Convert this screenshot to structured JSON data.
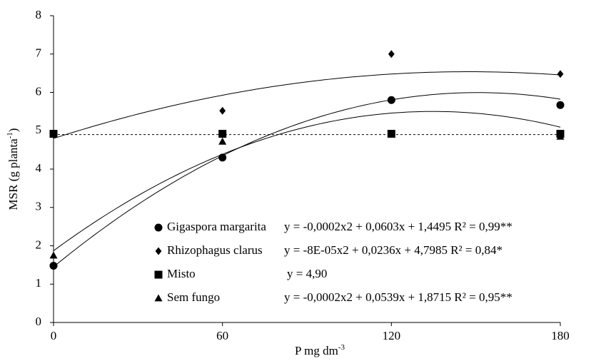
{
  "chart_data": {
    "type": "scatter",
    "x_label": {
      "text": "P mg dm",
      "sup": "-3"
    },
    "y_label": {
      "text": "MSR (g planta",
      "sup": "-1",
      "end": ")"
    },
    "x": [
      0,
      60,
      120,
      180
    ],
    "xlim": [
      0,
      180
    ],
    "xticks": [
      0,
      60,
      120,
      180
    ],
    "ylim": [
      0,
      8
    ],
    "yticks": [
      0,
      1,
      2,
      3,
      4,
      5,
      6,
      7,
      8
    ],
    "grid": false,
    "series": [
      {
        "name": "Gigaspora margarita",
        "color": "#000000",
        "marker": "circle",
        "values": [
          1.48,
          4.3,
          5.8,
          5.67
        ],
        "fit": [
          -0.0002,
          0.0603,
          1.4495
        ],
        "equation": "y = -0,0002x2 + 0,0603x + 1,4495 R² = 0,99**"
      },
      {
        "name": "Rhizophagus clarus",
        "color": "#000000",
        "marker": "diamond",
        "values": [
          4.9,
          5.52,
          7.0,
          6.48
        ],
        "fit": [
          -8e-05,
          0.0236,
          4.7985
        ],
        "equation": "y = -8E-05x2 + 0,0236x + 4,7985 R² = 0,84*"
      },
      {
        "name": "Misto",
        "color": "#000000",
        "marker": "square",
        "dash": true,
        "values": [
          4.92,
          4.92,
          4.92,
          4.92
        ],
        "fit": [
          4.9
        ],
        "equation": "y = 4,90"
      },
      {
        "name": "Sem fungo",
        "color": "#000000",
        "marker": "triangle",
        "values": [
          1.75,
          4.72,
          4.9,
          4.85
        ],
        "fit": [
          -0.0002,
          0.0539,
          1.8715
        ],
        "equation": "y = -0,0002x2 + 0,0539x + 1,8715 R² = 0,95**"
      }
    ]
  }
}
